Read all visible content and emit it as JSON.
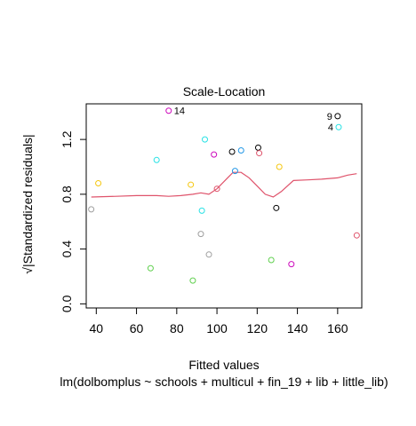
{
  "chart_data": {
    "type": "scatter",
    "title": "Scale-Location",
    "xlabel": "Fitted values",
    "subtitle": "lm(dolbomplus ~ schools + multicul + fin_19 + lib + little_lib)",
    "ylabel": "√|Standardized residuals|",
    "xlim": [
      35,
      172
    ],
    "ylim": [
      -0.03,
      1.46
    ],
    "xticks": [
      40,
      60,
      80,
      100,
      120,
      140,
      160
    ],
    "yticks": [
      0.0,
      0.4,
      0.8,
      1.2
    ],
    "grid": false,
    "legend": "none",
    "points": [
      {
        "x": 37.5,
        "y": 0.69,
        "color": "#9E9E9E"
      },
      {
        "x": 41.0,
        "y": 0.88,
        "color": "#F5C710"
      },
      {
        "x": 67.0,
        "y": 0.26,
        "color": "#61D04F"
      },
      {
        "x": 70.0,
        "y": 1.05,
        "color": "#28E2E5"
      },
      {
        "x": 76.0,
        "y": 1.41,
        "color": "#CD0BBC",
        "label": "14"
      },
      {
        "x": 87.0,
        "y": 0.87,
        "color": "#F5C710"
      },
      {
        "x": 88.0,
        "y": 0.17,
        "color": "#61D04F"
      },
      {
        "x": 92.0,
        "y": 0.51,
        "color": "#9E9E9E"
      },
      {
        "x": 92.5,
        "y": 0.68,
        "color": "#28E2E5"
      },
      {
        "x": 94.0,
        "y": 1.2,
        "color": "#28E2E5"
      },
      {
        "x": 96.0,
        "y": 0.36,
        "color": "#9E9E9E"
      },
      {
        "x": 98.5,
        "y": 1.09,
        "color": "#CD0BBC"
      },
      {
        "x": 100.0,
        "y": 0.84,
        "color": "#DF536B"
      },
      {
        "x": 107.5,
        "y": 1.11,
        "color": "#000000"
      },
      {
        "x": 109.0,
        "y": 0.97,
        "color": "#2297E6"
      },
      {
        "x": 112.0,
        "y": 1.12,
        "color": "#2297E6"
      },
      {
        "x": 120.5,
        "y": 1.14,
        "color": "#000000"
      },
      {
        "x": 121.0,
        "y": 1.1,
        "color": "#DF536B"
      },
      {
        "x": 127.0,
        "y": 0.32,
        "color": "#61D04F"
      },
      {
        "x": 129.5,
        "y": 0.7,
        "color": "#000000"
      },
      {
        "x": 131.0,
        "y": 1.0,
        "color": "#F5C710"
      },
      {
        "x": 137.0,
        "y": 0.29,
        "color": "#CD0BBC"
      },
      {
        "x": 160.0,
        "y": 1.37,
        "color": "#000000",
        "label": "9"
      },
      {
        "x": 160.5,
        "y": 1.29,
        "color": "#28E2E5",
        "label": "4"
      },
      {
        "x": 169.5,
        "y": 0.5,
        "color": "#DF536B"
      }
    ],
    "smooth_line": {
      "color": "#DF536B",
      "x": [
        37.5,
        50,
        60,
        70,
        76,
        82,
        88,
        92,
        96,
        100,
        104,
        108,
        112,
        116,
        120,
        124,
        128,
        132,
        138,
        145,
        152,
        160,
        165,
        169.5
      ],
      "y": [
        0.78,
        0.785,
        0.79,
        0.79,
        0.785,
        0.79,
        0.8,
        0.81,
        0.8,
        0.84,
        0.9,
        0.96,
        0.96,
        0.92,
        0.86,
        0.8,
        0.78,
        0.82,
        0.9,
        0.905,
        0.91,
        0.92,
        0.94,
        0.95
      ]
    }
  }
}
